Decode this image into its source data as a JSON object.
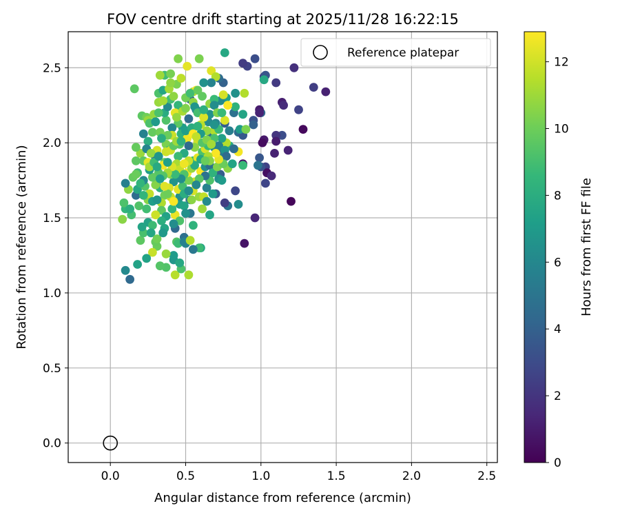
{
  "chart_data": {
    "type": "scatter",
    "title": "FOV centre drift starting at 2025/11/28 16:22:15",
    "xlabel": "Angular distance from reference (arcmin)",
    "ylabel": "Rotation from reference (arcmin)",
    "xlim": [
      -0.28,
      2.57
    ],
    "ylim": [
      -0.13,
      2.74
    ],
    "xticks": [
      "0.0",
      "0.5",
      "1.0",
      "1.5",
      "2.0",
      "2.5"
    ],
    "yticks": [
      "0.0",
      "0.5",
      "1.0",
      "1.5",
      "2.0",
      "2.5"
    ],
    "grid": true,
    "legend": {
      "placement": "top-right",
      "entries": [
        "Reference platepar"
      ]
    },
    "reference_point": {
      "x": 0.0,
      "y": 0.0,
      "name": "Reference platepar"
    },
    "colorbar": {
      "label": "Hours from first FF file",
      "range": [
        0,
        12.9
      ],
      "ticks": [
        "0",
        "2",
        "4",
        "6",
        "8",
        "10",
        "12"
      ],
      "colormap": "viridis"
    },
    "points": [
      [
        1.43,
        2.34,
        1.2
      ],
      [
        1.35,
        2.37,
        2.4
      ],
      [
        1.22,
        2.5,
        1.8
      ],
      [
        1.25,
        2.22,
        2.6
      ],
      [
        1.14,
        2.27,
        1.1
      ],
      [
        1.15,
        2.25,
        1.6
      ],
      [
        1.28,
        2.09,
        0.3
      ],
      [
        1.14,
        2.05,
        3.1
      ],
      [
        1.1,
        2.05,
        2.0
      ],
      [
        1.1,
        2.01,
        1.0
      ],
      [
        1.18,
        1.95,
        1.3
      ],
      [
        1.09,
        1.93,
        1.2
      ],
      [
        1.02,
        2.02,
        0.9
      ],
      [
        1.01,
        2.0,
        0.4
      ],
      [
        1.03,
        1.84,
        2.5
      ],
      [
        1.03,
        1.73,
        2.7
      ],
      [
        1.04,
        1.8,
        0.5
      ],
      [
        1.0,
        1.84,
        3.3
      ],
      [
        1.07,
        1.78,
        1.5
      ],
      [
        1.2,
        1.61,
        0.2
      ],
      [
        0.96,
        1.5,
        1.4
      ],
      [
        0.89,
        1.33,
        0.7
      ],
      [
        0.88,
        1.86,
        0.6
      ],
      [
        0.83,
        1.68,
        2.8
      ],
      [
        0.78,
        1.58,
        5.0
      ],
      [
        0.76,
        1.6,
        2.4
      ],
      [
        1.1,
        2.4,
        2.2
      ],
      [
        1.02,
        2.44,
        2.5
      ],
      [
        1.03,
        2.45,
        3.4
      ],
      [
        0.96,
        2.56,
        3.1
      ],
      [
        0.91,
        2.51,
        2.6
      ],
      [
        0.88,
        2.53,
        2.3
      ],
      [
        1.0,
        2.2,
        4.2
      ],
      [
        0.99,
        2.22,
        1.0
      ],
      [
        0.99,
        2.2,
        1.3
      ],
      [
        0.95,
        2.15,
        3.3
      ],
      [
        0.95,
        2.12,
        4.0
      ],
      [
        0.99,
        1.9,
        3.5
      ],
      [
        0.98,
        1.85,
        5.0
      ],
      [
        0.76,
        2.6,
        7.7
      ],
      [
        1.02,
        2.42,
        7.7
      ],
      [
        0.82,
        2.2,
        4.8
      ],
      [
        0.83,
        2.24,
        8.3
      ],
      [
        0.77,
        2.3,
        7.2
      ],
      [
        0.75,
        2.4,
        4.0
      ],
      [
        0.72,
        2.43,
        4.6
      ],
      [
        0.73,
        2.28,
        6.2
      ],
      [
        0.76,
        2.13,
        3.9
      ],
      [
        0.79,
        2.08,
        5.5
      ],
      [
        0.85,
        2.07,
        4.5
      ],
      [
        0.88,
        2.05,
        3.6
      ],
      [
        0.86,
        2.09,
        7.0
      ],
      [
        0.88,
        2.19,
        7.5
      ],
      [
        0.79,
        1.98,
        7.8
      ],
      [
        0.75,
        1.93,
        5.6
      ],
      [
        0.72,
        1.95,
        4.5
      ],
      [
        0.67,
        2.05,
        4.9
      ],
      [
        0.69,
        1.97,
        6.3
      ],
      [
        0.73,
        1.88,
        6.9
      ],
      [
        0.73,
        1.79,
        3.9
      ],
      [
        0.7,
        1.66,
        3.9
      ],
      [
        0.66,
        1.52,
        7.5
      ],
      [
        0.6,
        1.3,
        7.6
      ],
      [
        0.59,
        1.3,
        8.8
      ],
      [
        0.55,
        1.45,
        8.3
      ],
      [
        0.53,
        1.53,
        5.1
      ],
      [
        0.5,
        1.33,
        5.8
      ],
      [
        0.49,
        1.37,
        4.8
      ],
      [
        0.43,
        1.43,
        4.4
      ],
      [
        0.42,
        1.22,
        6.8
      ],
      [
        0.42,
        1.25,
        7.0
      ],
      [
        0.43,
        1.12,
        11.5
      ],
      [
        0.47,
        1.16,
        9.2
      ],
      [
        0.37,
        1.17,
        9.3
      ],
      [
        0.37,
        1.26,
        10.9
      ],
      [
        0.31,
        1.31,
        9.9
      ],
      [
        0.3,
        1.34,
        9.8
      ],
      [
        0.28,
        1.27,
        11.8
      ],
      [
        0.24,
        1.23,
        7.4
      ],
      [
        0.18,
        1.19,
        7.4
      ],
      [
        0.1,
        1.15,
        6.1
      ],
      [
        0.13,
        1.09,
        4.4
      ],
      [
        0.2,
        1.35,
        9.6
      ],
      [
        0.22,
        1.4,
        9.1
      ],
      [
        0.25,
        1.47,
        7.4
      ],
      [
        0.21,
        1.44,
        7.5
      ],
      [
        0.19,
        1.58,
        9.3
      ],
      [
        0.14,
        1.52,
        9.0
      ],
      [
        0.1,
        1.56,
        8.5
      ],
      [
        0.08,
        1.49,
        10.6
      ],
      [
        0.09,
        1.6,
        9.2
      ],
      [
        0.13,
        1.56,
        8.1
      ],
      [
        0.12,
        1.69,
        10.7
      ],
      [
        0.17,
        1.65,
        4.6
      ],
      [
        0.18,
        1.69,
        7.7
      ],
      [
        0.18,
        1.8,
        8.9
      ],
      [
        0.15,
        1.77,
        9.8
      ],
      [
        0.1,
        1.73,
        5.6
      ],
      [
        0.17,
        1.88,
        9.6
      ],
      [
        0.2,
        1.93,
        10.9
      ],
      [
        0.17,
        1.97,
        9.8
      ],
      [
        0.22,
        2.06,
        5.7
      ],
      [
        0.21,
        2.18,
        9.6
      ],
      [
        0.24,
        2.17,
        10.1
      ],
      [
        0.25,
        2.15,
        10.9
      ],
      [
        0.26,
        2.13,
        9.2
      ],
      [
        0.28,
        2.07,
        9.8
      ],
      [
        0.25,
        2.01,
        8.0
      ],
      [
        0.24,
        1.96,
        5.9
      ],
      [
        0.3,
        1.9,
        5.1
      ],
      [
        0.31,
        1.95,
        12.1
      ],
      [
        0.29,
        2.19,
        10.8
      ],
      [
        0.3,
        2.14,
        7.0
      ],
      [
        0.32,
        2.27,
        10.9
      ],
      [
        0.32,
        2.33,
        9.2
      ],
      [
        0.35,
        2.35,
        7.6
      ],
      [
        0.36,
        2.45,
        8.9
      ],
      [
        0.33,
        2.45,
        11.0
      ],
      [
        0.4,
        2.46,
        10.2
      ],
      [
        0.39,
        2.36,
        11.1
      ],
      [
        0.44,
        2.39,
        10.3
      ],
      [
        0.45,
        2.56,
        10.4
      ],
      [
        0.59,
        2.56,
        10.3
      ],
      [
        0.67,
        2.48,
        12.3
      ],
      [
        0.7,
        2.44,
        11.4
      ],
      [
        0.67,
        2.4,
        5.8
      ],
      [
        0.75,
        2.32,
        12.1
      ],
      [
        0.78,
        2.25,
        12.9
      ],
      [
        0.76,
        2.15,
        12.2
      ],
      [
        0.66,
        2.19,
        6.5
      ],
      [
        0.61,
        2.31,
        9.7
      ],
      [
        0.55,
        2.34,
        11.2
      ],
      [
        0.57,
        2.35,
        12.9
      ],
      [
        0.53,
        2.29,
        4.0
      ],
      [
        0.57,
        2.22,
        5.9
      ],
      [
        0.52,
        2.16,
        4.5
      ],
      [
        0.48,
        2.1,
        7.1
      ],
      [
        0.45,
        2.13,
        9.6
      ],
      [
        0.47,
        2.06,
        8.3
      ],
      [
        0.41,
        2.1,
        6.0
      ],
      [
        0.41,
        2.05,
        11.9
      ],
      [
        0.38,
        2.05,
        9.9
      ],
      [
        0.37,
        1.99,
        10.3
      ],
      [
        0.39,
        1.95,
        8.6
      ],
      [
        0.36,
        1.87,
        9.9
      ],
      [
        0.35,
        1.85,
        12.7
      ],
      [
        0.32,
        1.8,
        9.4
      ],
      [
        0.31,
        1.75,
        11.3
      ],
      [
        0.33,
        1.7,
        8.2
      ],
      [
        0.36,
        1.65,
        10.1
      ],
      [
        0.34,
        1.6,
        11.3
      ],
      [
        0.34,
        1.55,
        9.6
      ],
      [
        0.37,
        1.51,
        7.4
      ],
      [
        0.34,
        1.48,
        8.1
      ],
      [
        0.36,
        1.43,
        7.6
      ],
      [
        0.43,
        1.52,
        12.5
      ],
      [
        0.41,
        1.56,
        8.5
      ],
      [
        0.46,
        1.59,
        7.2
      ],
      [
        0.46,
        1.64,
        6.4
      ],
      [
        0.49,
        1.58,
        7.5
      ],
      [
        0.53,
        1.62,
        5.3
      ],
      [
        0.55,
        1.68,
        12.1
      ],
      [
        0.56,
        1.74,
        11.9
      ],
      [
        0.59,
        1.64,
        10.9
      ],
      [
        0.61,
        1.56,
        11.0
      ],
      [
        0.62,
        1.64,
        11.7
      ],
      [
        0.64,
        1.61,
        6.2
      ],
      [
        0.64,
        1.7,
        5.8
      ],
      [
        0.68,
        1.66,
        7.0
      ],
      [
        0.66,
        1.75,
        9.2
      ],
      [
        0.6,
        1.81,
        12.8
      ],
      [
        0.63,
        1.84,
        6.3
      ],
      [
        0.66,
        1.85,
        4.7
      ],
      [
        0.68,
        1.8,
        8.3
      ],
      [
        0.71,
        1.84,
        10.4
      ],
      [
        0.72,
        1.76,
        6.4
      ],
      [
        0.74,
        1.75,
        7.0
      ],
      [
        0.78,
        1.83,
        10.6
      ],
      [
        0.81,
        1.86,
        7.5
      ],
      [
        0.88,
        1.85,
        8.7
      ],
      [
        0.85,
        1.94,
        12.7
      ],
      [
        0.82,
        1.96,
        4.6
      ],
      [
        0.77,
        2.0,
        11.4
      ],
      [
        0.74,
        2.03,
        7.3
      ],
      [
        0.69,
        2.08,
        11.4
      ],
      [
        0.64,
        2.08,
        10.8
      ],
      [
        0.65,
        2.14,
        6.1
      ],
      [
        0.6,
        2.12,
        11.5
      ],
      [
        0.6,
        2.06,
        7.0
      ],
      [
        0.58,
        2.01,
        11.9
      ],
      [
        0.56,
        1.97,
        10.6
      ],
      [
        0.51,
        2.03,
        12.6
      ],
      [
        0.52,
        1.98,
        4.5
      ],
      [
        0.49,
        1.93,
        7.8
      ],
      [
        0.46,
        1.99,
        9.5
      ],
      [
        0.45,
        1.91,
        8.8
      ],
      [
        0.44,
        1.86,
        11.2
      ],
      [
        0.46,
        1.82,
        11.8
      ],
      [
        0.45,
        1.77,
        8.0
      ],
      [
        0.42,
        1.74,
        6.6
      ],
      [
        0.4,
        1.79,
        10.3
      ],
      [
        0.39,
        1.7,
        12.2
      ],
      [
        0.4,
        1.64,
        11.7
      ],
      [
        0.42,
        1.61,
        12.8
      ],
      [
        0.45,
        1.69,
        12.4
      ],
      [
        0.48,
        1.71,
        9.0
      ],
      [
        0.49,
        1.66,
        8.0
      ],
      [
        0.52,
        1.68,
        6.3
      ],
      [
        0.52,
        1.75,
        10.2
      ],
      [
        0.51,
        1.8,
        12.7
      ],
      [
        0.54,
        1.83,
        10.8
      ],
      [
        0.55,
        1.88,
        8.6
      ],
      [
        0.58,
        1.9,
        12.4
      ],
      [
        0.61,
        1.94,
        9.2
      ],
      [
        0.63,
        1.96,
        12.2
      ],
      [
        0.65,
        1.98,
        8.7
      ],
      [
        0.6,
        1.89,
        7.7
      ],
      [
        0.63,
        1.78,
        4.9
      ],
      [
        0.59,
        1.76,
        9.5
      ],
      [
        0.57,
        1.72,
        6.0
      ],
      [
        0.54,
        1.62,
        10.6
      ],
      [
        0.5,
        1.53,
        6.5
      ],
      [
        0.46,
        1.48,
        9.2
      ],
      [
        0.42,
        1.46,
        6.3
      ],
      [
        0.38,
        1.66,
        10.0
      ],
      [
        0.36,
        1.71,
        12.3
      ],
      [
        0.3,
        1.72,
        10.5
      ],
      [
        0.28,
        1.77,
        9.7
      ],
      [
        0.26,
        1.82,
        7.1
      ],
      [
        0.23,
        1.71,
        9.4
      ],
      [
        0.22,
        1.75,
        6.1
      ],
      [
        0.2,
        1.73,
        8.4
      ],
      [
        0.17,
        1.79,
        9.9
      ],
      [
        0.25,
        1.62,
        10.5
      ],
      [
        0.26,
        1.66,
        11.7
      ],
      [
        0.22,
        1.65,
        8.4
      ],
      [
        0.24,
        1.56,
        8.9
      ],
      [
        0.28,
        1.61,
        7.2
      ],
      [
        0.3,
        1.52,
        11.9
      ],
      [
        0.28,
        1.45,
        8.8
      ],
      [
        0.31,
        1.62,
        6.7
      ],
      [
        0.27,
        1.4,
        7.6
      ],
      [
        0.31,
        1.36,
        10.1
      ],
      [
        0.35,
        1.4,
        6.9
      ],
      [
        0.44,
        1.34,
        9.4
      ],
      [
        0.45,
        1.33,
        8.8
      ],
      [
        0.49,
        1.34,
        5.7
      ],
      [
        0.53,
        1.35,
        11.4
      ],
      [
        0.46,
        1.2,
        7.7
      ],
      [
        0.16,
        2.36,
        9.6
      ],
      [
        0.22,
        1.88,
        9.6
      ],
      [
        0.25,
        1.87,
        12.4
      ],
      [
        0.26,
        1.84,
        11.1
      ],
      [
        0.29,
        1.87,
        8.9
      ],
      [
        0.27,
        1.93,
        10.8
      ],
      [
        0.32,
        1.91,
        6.7
      ],
      [
        0.33,
        2.07,
        10.1
      ],
      [
        0.34,
        2.03,
        8.0
      ],
      [
        0.37,
        2.15,
        9.3
      ],
      [
        0.36,
        2.2,
        7.9
      ],
      [
        0.38,
        2.24,
        6.2
      ],
      [
        0.4,
        2.29,
        9.0
      ],
      [
        0.42,
        2.31,
        10.7
      ],
      [
        0.45,
        2.25,
        8.5
      ],
      [
        0.43,
        2.2,
        12.4
      ],
      [
        0.44,
        2.17,
        10.8
      ],
      [
        0.48,
        2.21,
        11.2
      ],
      [
        0.5,
        2.23,
        10.4
      ],
      [
        0.5,
        2.3,
        10.1
      ],
      [
        0.53,
        2.33,
        8.9
      ],
      [
        0.55,
        2.27,
        10.7
      ],
      [
        0.56,
        2.24,
        6.7
      ],
      [
        0.58,
        2.2,
        9.0
      ],
      [
        0.62,
        2.17,
        12.2
      ],
      [
        0.62,
        2.22,
        8.1
      ],
      [
        0.66,
        2.26,
        10.8
      ],
      [
        0.69,
        2.29,
        8.7
      ],
      [
        0.69,
        2.25,
        6.3
      ],
      [
        0.71,
        2.2,
        10.4
      ],
      [
        0.74,
        2.2,
        8.7
      ],
      [
        0.7,
        2.13,
        5.9
      ],
      [
        0.72,
        2.09,
        8.7
      ],
      [
        0.69,
        2.03,
        9.1
      ],
      [
        0.72,
        1.98,
        5.6
      ],
      [
        0.76,
        1.95,
        6.7
      ],
      [
        0.77,
        1.91,
        4.5
      ],
      [
        0.75,
        1.86,
        9.9
      ],
      [
        0.72,
        1.89,
        12.4
      ],
      [
        0.7,
        1.93,
        12.8
      ],
      [
        0.65,
        1.91,
        11.3
      ],
      [
        0.66,
        1.88,
        10.6
      ],
      [
        0.63,
        1.88,
        9.9
      ],
      [
        0.56,
        1.85,
        7.9
      ],
      [
        0.52,
        1.88,
        11.8
      ],
      [
        0.49,
        1.86,
        12.6
      ],
      [
        0.49,
        1.79,
        9.3
      ],
      [
        0.47,
        1.76,
        6.4
      ],
      [
        0.43,
        1.79,
        8.7
      ],
      [
        0.41,
        1.84,
        12.2
      ],
      [
        0.38,
        1.87,
        7.3
      ],
      [
        0.38,
        1.8,
        11.1
      ],
      [
        0.35,
        1.78,
        9.4
      ],
      [
        0.33,
        1.76,
        7.2
      ],
      [
        0.31,
        1.84,
        7.8
      ],
      [
        0.37,
        1.94,
        11.9
      ],
      [
        0.4,
        1.95,
        12.0
      ],
      [
        0.42,
        1.98,
        9.6
      ],
      [
        0.44,
        2.01,
        11.0
      ],
      [
        0.47,
        2.01,
        8.3
      ],
      [
        0.5,
        2.08,
        7.2
      ],
      [
        0.54,
        2.1,
        7.9
      ],
      [
        0.55,
        2.06,
        12.9
      ],
      [
        0.57,
        2.04,
        11.7
      ],
      [
        0.58,
        2.11,
        8.3
      ],
      [
        0.61,
        2.0,
        9.4
      ],
      [
        0.64,
        2.02,
        10.4
      ],
      [
        0.67,
        1.99,
        11.1
      ],
      [
        0.69,
        2.12,
        6.6
      ],
      [
        0.62,
        2.4,
        6.5
      ],
      [
        0.58,
        2.35,
        9.8
      ],
      [
        0.47,
        2.43,
        11.6
      ],
      [
        0.51,
        2.51,
        12.4
      ],
      [
        0.4,
        2.4,
        10.7
      ],
      [
        0.35,
        2.28,
        11.1
      ],
      [
        0.32,
        2.2,
        9.2
      ],
      [
        0.83,
        2.33,
        6.5
      ],
      [
        0.89,
        2.33,
        11.4
      ],
      [
        0.85,
        1.59,
        6.3
      ],
      [
        0.9,
        2.09,
        10.3
      ],
      [
        0.55,
        1.29,
        5.2
      ],
      [
        0.52,
        1.12,
        11.3
      ],
      [
        0.33,
        1.18,
        9.4
      ]
    ]
  }
}
